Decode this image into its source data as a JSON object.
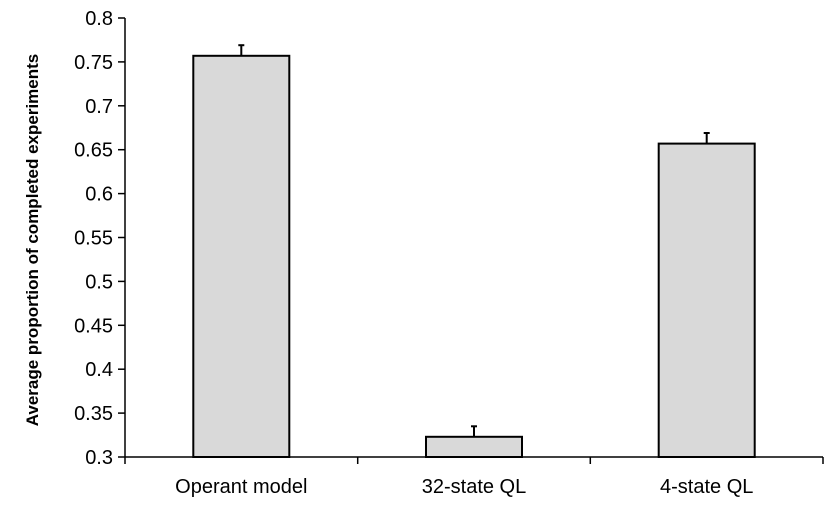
{
  "chart_data": {
    "type": "bar",
    "title": "",
    "xlabel": "",
    "ylabel": "Average proportion of completed experiments",
    "categories": [
      "Operant model",
      "32-state QL",
      "4-state QL"
    ],
    "values": [
      0.757,
      0.323,
      0.657
    ],
    "error_bars": [
      0.012,
      0.012,
      0.012
    ],
    "ylim": [
      0.3,
      0.8
    ],
    "yticks": [
      0.3,
      0.35,
      0.4,
      0.45,
      0.5,
      0.55,
      0.6,
      0.65,
      0.7,
      0.75,
      0.8
    ],
    "ytick_labels": [
      "0.3",
      "0.35",
      "0.4",
      "0.45",
      "0.5",
      "0.55",
      "0.6",
      "0.65",
      "0.7",
      "0.75",
      "0.8"
    ],
    "grid": false,
    "legend": "none",
    "colors": {
      "bar_fill": "#d9d9d9",
      "bar_stroke": "#000000",
      "axis": "#000000"
    }
  }
}
